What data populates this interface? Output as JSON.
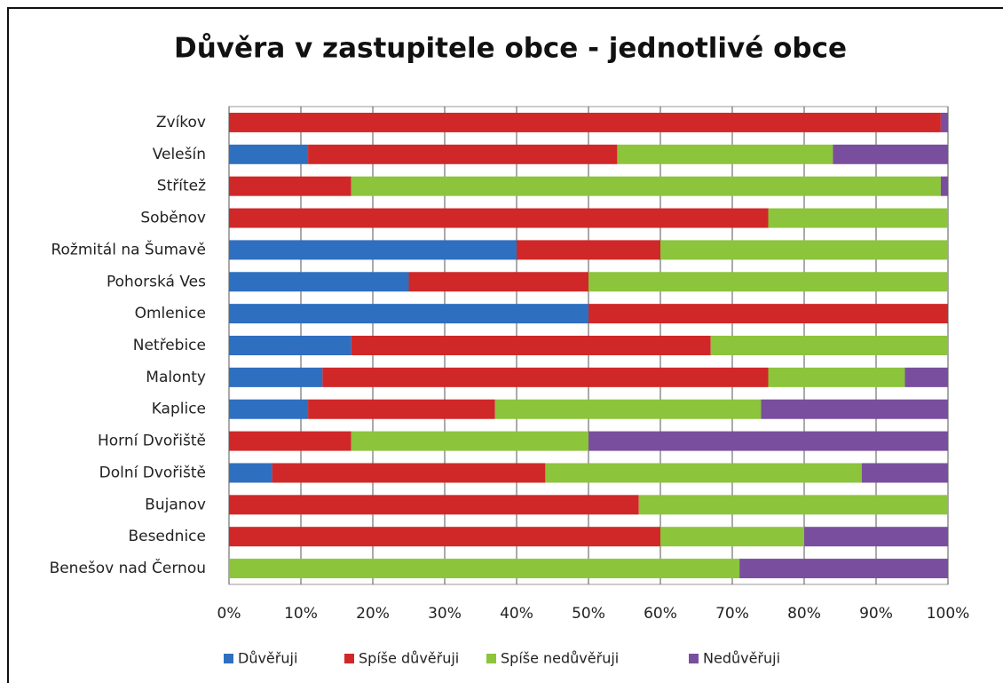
{
  "chart_data": {
    "type": "stacked-bar-horizontal",
    "title": "Důvěra v zastupitele obce - jednotlivé obce",
    "categories": [
      "Zvíkov",
      "Velešín",
      "Střítež",
      "Soběnov",
      "Rožmitál na Šumavě",
      "Pohorská Ves",
      "Omlenice",
      "Netřebice",
      "Malonty",
      "Kaplice",
      "Horní Dvořiště",
      "Dolní Dvořiště",
      "Bujanov",
      "Besednice",
      "Benešov nad Černou"
    ],
    "series": [
      {
        "name": "Důvěřuji",
        "color": "#2f6fc0",
        "values": [
          0,
          11,
          0,
          0,
          40,
          25,
          50,
          17,
          13,
          11,
          0,
          6,
          0,
          0,
          0
        ]
      },
      {
        "name": "Spíše důvěřuji",
        "color": "#d02828",
        "values": [
          99,
          43,
          17,
          75,
          20,
          25,
          50,
          50,
          62,
          26,
          17,
          38,
          57,
          60,
          0
        ]
      },
      {
        "name": "Spíše nedůvěřuji",
        "color": "#8cc43c",
        "values": [
          0,
          30,
          82,
          25,
          40,
          50,
          0,
          33,
          19,
          37,
          33,
          44,
          43,
          20,
          71
        ]
      },
      {
        "name": "Nedůvěřuji",
        "color": "#7a4e9e",
        "values": [
          1,
          16,
          1,
          0,
          0,
          0,
          0,
          0,
          6,
          26,
          50,
          12,
          0,
          20,
          29
        ]
      }
    ],
    "xlim": [
      0,
      100
    ],
    "xticks": [
      {
        "value": 0,
        "label": "0%"
      },
      {
        "value": 10,
        "label": "10%"
      },
      {
        "value": 20,
        "label": "20%"
      },
      {
        "value": 30,
        "label": "30%"
      },
      {
        "value": 40,
        "label": "40%"
      },
      {
        "value": 50,
        "label": "50%"
      },
      {
        "value": 60,
        "label": "60%"
      },
      {
        "value": 70,
        "label": "70%"
      },
      {
        "value": 80,
        "label": "80%"
      },
      {
        "value": 90,
        "label": "90%"
      },
      {
        "value": 100,
        "label": "100%"
      }
    ],
    "grid": true,
    "legend": "bottom"
  }
}
